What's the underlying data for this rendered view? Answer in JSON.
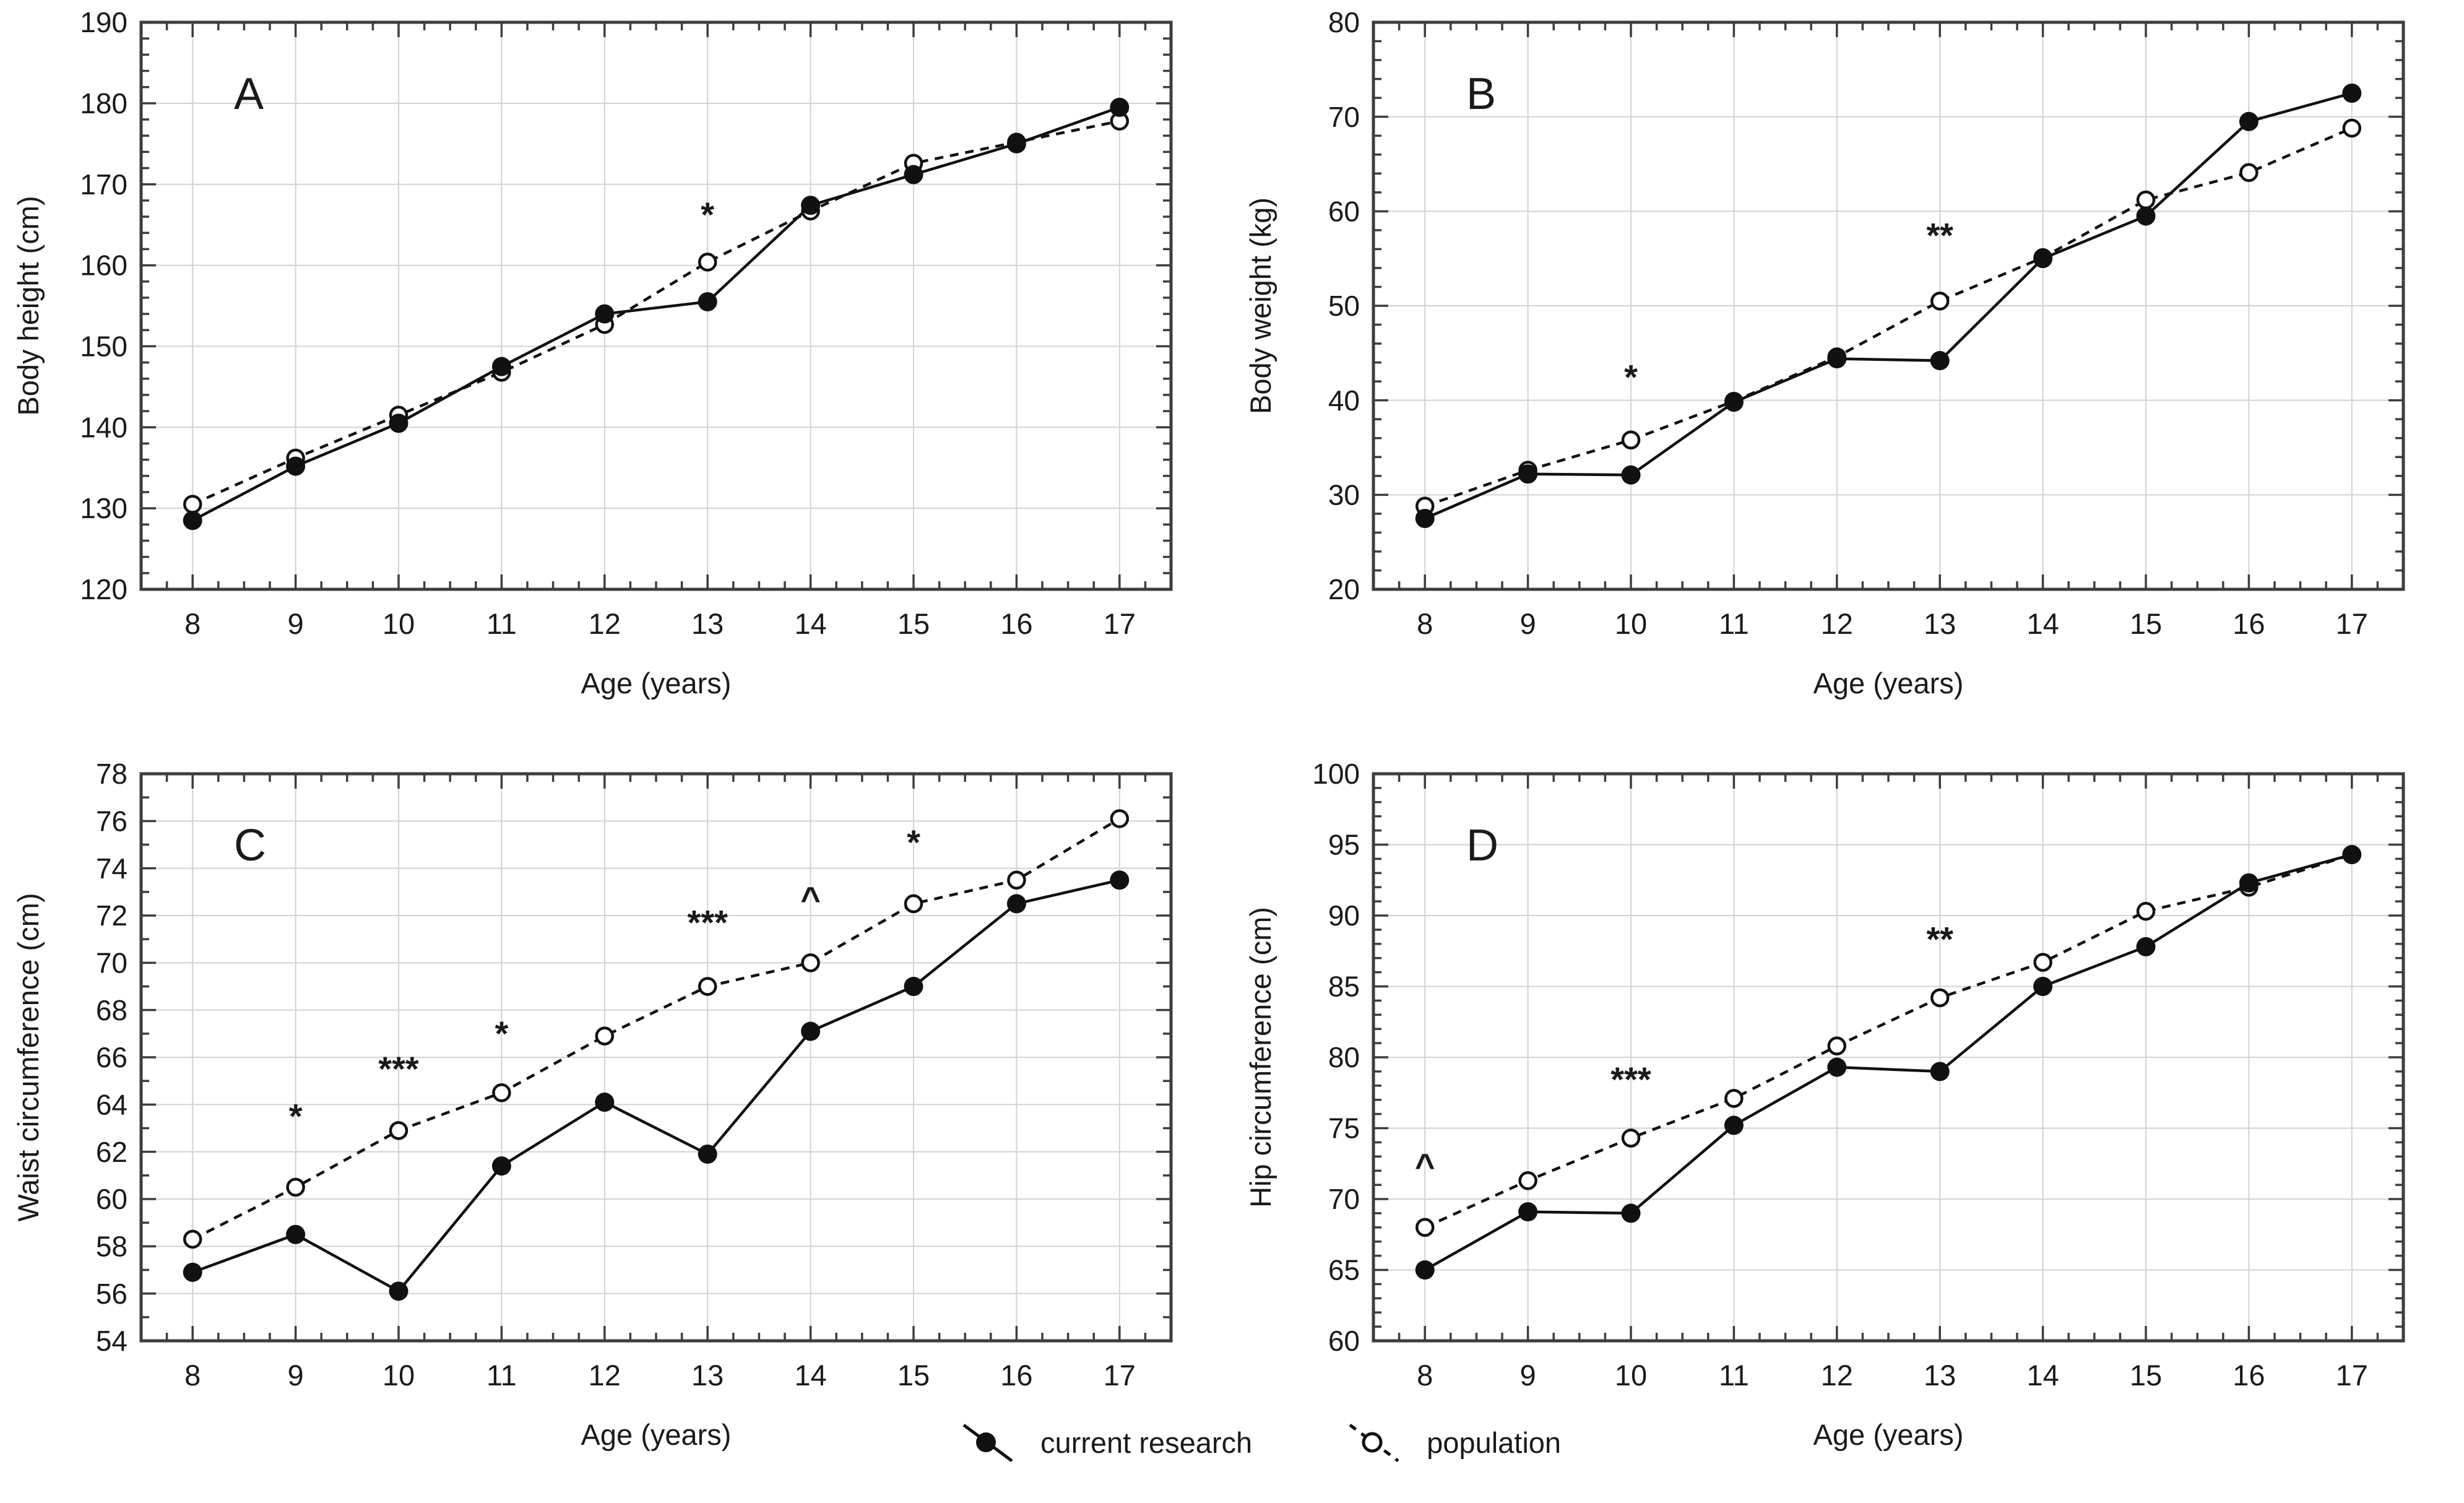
{
  "figure": {
    "background": "#ffffff",
    "text_color": "#1a1a1a",
    "grid_color": "#d2d2d2",
    "frame_color": "#3d3d3d",
    "series_color": "#111111"
  },
  "legend": {
    "items": [
      {
        "label": "current research",
        "marker": "filled-circle",
        "line": "solid"
      },
      {
        "label": "population",
        "marker": "open-circle",
        "line": "dashed"
      }
    ]
  },
  "chart_data": [
    {
      "type": "line",
      "panel_label": "A",
      "xlabel": "Age (years)",
      "ylabel": "Body height (cm)",
      "x": [
        8,
        9,
        10,
        11,
        12,
        13,
        14,
        15,
        16,
        17
      ],
      "xlim": [
        7.5,
        17.5
      ],
      "ylim": [
        120,
        190
      ],
      "ytick_step": 10,
      "yminor_step": 2,
      "xminor_step": 0.25,
      "grid": true,
      "legend_position": "bottom-center-shared",
      "series": [
        {
          "name": "current research",
          "style": "solid-filled",
          "values": [
            128.5,
            135.2,
            140.5,
            147.5,
            154.0,
            155.5,
            167.4,
            171.2,
            175.0,
            179.5
          ]
        },
        {
          "name": "population",
          "style": "dashed-open",
          "values": [
            130.5,
            136.2,
            141.5,
            146.8,
            152.7,
            160.4,
            166.7,
            172.6,
            175.2,
            177.8
          ]
        }
      ],
      "annotations": [
        {
          "text": "*",
          "x": 13,
          "y": 164.8
        }
      ]
    },
    {
      "type": "line",
      "panel_label": "B",
      "xlabel": "Age (years)",
      "ylabel": "Body weight (kg)",
      "x": [
        8,
        9,
        10,
        11,
        12,
        13,
        14,
        15,
        16,
        17
      ],
      "xlim": [
        7.5,
        17.5
      ],
      "ylim": [
        20,
        80
      ],
      "ytick_step": 10,
      "yminor_step": 2,
      "xminor_step": 0.25,
      "grid": true,
      "series": [
        {
          "name": "current research",
          "style": "solid-filled",
          "values": [
            27.5,
            32.2,
            32.1,
            39.8,
            44.4,
            44.2,
            55.0,
            59.5,
            69.5,
            72.5
          ]
        },
        {
          "name": "population",
          "style": "dashed-open",
          "values": [
            28.8,
            32.6,
            35.8,
            39.9,
            44.6,
            50.5,
            55.1,
            61.2,
            64.1,
            68.8
          ]
        }
      ],
      "annotations": [
        {
          "text": "*",
          "x": 10,
          "y": 41.2
        },
        {
          "text": "**",
          "x": 13,
          "y": 56.2
        }
      ]
    },
    {
      "type": "line",
      "panel_label": "C",
      "xlabel": "Age (years)",
      "ylabel": "Waist circumference (cm)",
      "x": [
        8,
        9,
        10,
        11,
        12,
        13,
        14,
        15,
        16,
        17
      ],
      "xlim": [
        7.5,
        17.5
      ],
      "ylim": [
        54,
        78
      ],
      "ytick_step": 2,
      "yminor_step": 1,
      "xminor_step": 0.25,
      "grid": true,
      "series": [
        {
          "name": "current research",
          "style": "solid-filled",
          "values": [
            56.9,
            58.5,
            56.1,
            61.4,
            64.1,
            61.9,
            67.1,
            69.0,
            72.5,
            73.5
          ]
        },
        {
          "name": "population",
          "style": "dashed-open",
          "values": [
            58.3,
            60.5,
            62.9,
            64.5,
            66.9,
            69.0,
            70.0,
            72.5,
            73.5,
            76.1
          ]
        }
      ],
      "annotations": [
        {
          "text": "*",
          "x": 9,
          "y": 63.0
        },
        {
          "text": "***",
          "x": 10,
          "y": 65.0
        },
        {
          "text": "*",
          "x": 11,
          "y": 66.5
        },
        {
          "text": "***",
          "x": 13,
          "y": 71.2
        },
        {
          "text": "^",
          "x": 14,
          "y": 72.2
        },
        {
          "text": "*",
          "x": 15,
          "y": 74.6
        }
      ]
    },
    {
      "type": "line",
      "panel_label": "D",
      "xlabel": "Age (years)",
      "ylabel": "Hip circumference (cm)",
      "x": [
        8,
        9,
        10,
        11,
        12,
        13,
        14,
        15,
        16,
        17
      ],
      "xlim": [
        7.5,
        17.5
      ],
      "ylim": [
        60,
        100
      ],
      "ytick_step": 5,
      "yminor_step": 1,
      "xminor_step": 0.25,
      "grid": true,
      "series": [
        {
          "name": "current research",
          "style": "solid-filled",
          "values": [
            65.0,
            69.1,
            69.0,
            75.2,
            79.3,
            79.0,
            85.0,
            87.8,
            92.3,
            94.3
          ]
        },
        {
          "name": "population",
          "style": "dashed-open",
          "values": [
            68.0,
            71.3,
            74.3,
            77.1,
            80.8,
            84.2,
            86.7,
            90.3,
            92.0,
            94.3
          ]
        }
      ],
      "annotations": [
        {
          "text": "^",
          "x": 8,
          "y": 71.5
        },
        {
          "text": "***",
          "x": 10,
          "y": 77.6
        },
        {
          "text": "**",
          "x": 13,
          "y": 87.5
        }
      ]
    }
  ]
}
